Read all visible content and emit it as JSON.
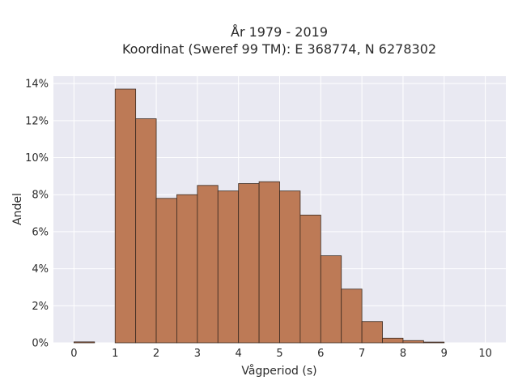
{
  "chart_data": {
    "type": "bar",
    "title_lines": [
      "År 1979 - 2019",
      "Koordinat (Sweref 99 TM): E 368774, N 6278302"
    ],
    "xlabel": "Vågperiod (s)",
    "ylabel": "Andel",
    "xlim": [
      -0.5,
      10.5
    ],
    "ylim": [
      0,
      14.4
    ],
    "x_ticks": [
      0,
      1,
      2,
      3,
      4,
      5,
      6,
      7,
      8,
      9,
      10
    ],
    "x_tick_labels": [
      "0",
      "1",
      "2",
      "3",
      "4",
      "5",
      "6",
      "7",
      "8",
      "9",
      "10"
    ],
    "y_ticks": [
      0,
      2,
      4,
      6,
      8,
      10,
      12,
      14
    ],
    "y_tick_labels": [
      "0%",
      "2%",
      "4%",
      "6%",
      "8%",
      "10%",
      "12%",
      "14%"
    ],
    "bin_width": 0.5,
    "bin_starts": [
      0,
      0.5,
      1,
      1.5,
      2,
      2.5,
      3,
      3.5,
      4,
      4.5,
      5,
      5.5,
      6,
      6.5,
      7,
      7.5,
      8,
      8.5,
      9,
      9.5
    ],
    "values": [
      0.05,
      0,
      13.7,
      12.1,
      7.8,
      8.0,
      8.5,
      8.2,
      8.6,
      8.7,
      8.2,
      6.9,
      4.7,
      2.9,
      1.15,
      0.25,
      0.12,
      0.04,
      0,
      0
    ],
    "grid": true,
    "colors": {
      "bar_fill": "#bd7a56",
      "bar_edge": "#3a2a20",
      "plot_background": "#e9e9f2",
      "grid": "#ffffff"
    }
  }
}
